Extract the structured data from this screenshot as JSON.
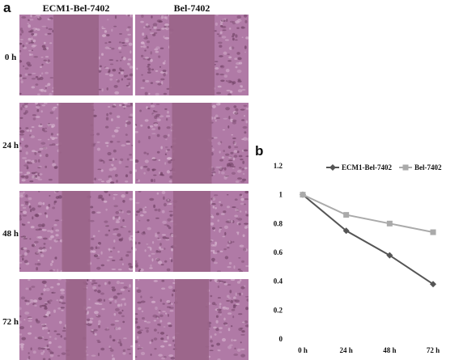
{
  "panel_a": {
    "letter": "a",
    "columns": [
      "ECM1-Bel-7402",
      "Bel-7402"
    ],
    "rows": [
      "0 h",
      "24 h",
      "48 h",
      "72 h"
    ],
    "tile_colors": {
      "cells": "#b07aa6",
      "gap": "#9a6488",
      "dark": "#6e3f62",
      "light": "#d9b8d2"
    },
    "gap_fraction": {
      "ECM1-Bel-7402": [
        0.4,
        0.31,
        0.25,
        0.18
      ],
      "Bel-7402": [
        0.4,
        0.35,
        0.33,
        0.3
      ]
    }
  },
  "panel_b": {
    "letter": "b"
  },
  "chart_data": {
    "type": "line",
    "title": "",
    "xlabel": "",
    "ylabel": "",
    "categories": [
      "0 h",
      "24 h",
      "48 h",
      "72 h"
    ],
    "ylim": [
      0,
      1.2
    ],
    "yticks": [
      "0",
      "0.2",
      "0.4",
      "0.6",
      "0.8",
      "1",
      "1.2"
    ],
    "grid": false,
    "legend_position": "top",
    "series": [
      {
        "name": "ECM1-Bel-7402",
        "values": [
          1.0,
          0.75,
          0.58,
          0.38
        ],
        "color": "#555555",
        "marker": "diamond"
      },
      {
        "name": "Bel-7402",
        "values": [
          1.0,
          0.86,
          0.8,
          0.74
        ],
        "color": "#aaaaaa",
        "marker": "square"
      }
    ]
  }
}
